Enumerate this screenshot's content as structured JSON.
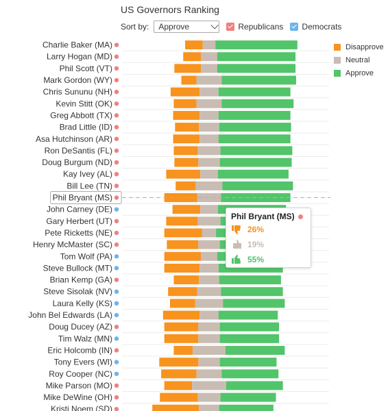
{
  "title": "US Governors Ranking",
  "sort": {
    "label": "Sort by:",
    "value": "Approve"
  },
  "filters": [
    {
      "label": "Republicans",
      "color": "#f08080"
    },
    {
      "label": "Democrats",
      "color": "#6cb4ea"
    }
  ],
  "colors": {
    "disapprove": "#f7931e",
    "neutral": "#c9bcb3",
    "approve": "#52c46a",
    "republican": "#f08080",
    "democrat": "#6cb4ea"
  },
  "legend": [
    {
      "label": "Disapprove",
      "color": "#f7931e"
    },
    {
      "label": "Neutral",
      "color": "#c9bcb3"
    },
    {
      "label": "Approve",
      "color": "#52c46a"
    }
  ],
  "chart_data": {
    "type": "bar",
    "stacked": true,
    "stack_offset": "diverging",
    "categories": [
      "Charlie Baker (MA)",
      "Larry Hogan (MD)",
      "Phil Scott (VT)",
      "Mark Gordon (WY)",
      "Chris Sununu (NH)",
      "Kevin Stitt (OK)",
      "Greg Abbott (TX)",
      "Brad Little (ID)",
      "Asa Hutchinson (AR)",
      "Ron DeSantis (FL)",
      "Doug Burgum (ND)",
      "Kay Ivey (AL)",
      "Bill Lee (TN)",
      "Phil Bryant (MS)",
      "John Carney (DE)",
      "Gary Herbert (UT)",
      "Pete Ricketts (NE)",
      "Henry McMaster (SC)",
      "Tom Wolf (PA)",
      "Steve Bullock (MT)",
      "Brian Kemp (GA)",
      "Steve Sisolak (NV)",
      "Laura Kelly (KS)",
      "John Bel Edwards (LA)",
      "Doug Ducey (AZ)",
      "Tim Walz (MN)",
      "Eric Holcomb (IN)",
      "Tony Evers (WI)",
      "Roy Cooper (NC)",
      "Mike Parson (MO)",
      "Mike DeWine (OH)",
      "Kristi Noem (SD)"
    ],
    "party": [
      "R",
      "R",
      "R",
      "R",
      "R",
      "R",
      "R",
      "R",
      "R",
      "R",
      "R",
      "R",
      "R",
      "R",
      "D",
      "R",
      "R",
      "R",
      "D",
      "D",
      "R",
      "D",
      "D",
      "D",
      "R",
      "D",
      "R",
      "D",
      "D",
      "R",
      "R",
      "R"
    ],
    "series": [
      {
        "name": "Disapprove",
        "values": [
          14,
          14,
          21,
          12,
          23,
          18,
          21,
          19,
          21,
          19,
          19,
          27,
          16,
          26,
          22,
          25,
          30,
          25,
          29,
          28,
          20,
          23,
          20,
          29,
          27,
          27,
          15,
          31,
          28,
          22,
          30,
          37
        ]
      },
      {
        "name": "Neutral",
        "values": [
          10,
          13,
          13,
          20,
          15,
          20,
          15,
          16,
          15,
          18,
          17,
          14,
          21,
          19,
          14,
          18,
          11,
          17,
          13,
          15,
          16,
          19,
          22,
          15,
          17,
          17,
          26,
          17,
          20,
          27,
          18,
          16
        ]
      },
      {
        "name": "Approve",
        "values": [
          65,
          62,
          62,
          59,
          57,
          57,
          57,
          57,
          57,
          57,
          57,
          56,
          56,
          55,
          54,
          54,
          54,
          54,
          54,
          51,
          49,
          49,
          49,
          47,
          47,
          47,
          47,
          45,
          45,
          45,
          44,
          43
        ]
      }
    ],
    "tooltip": {
      "name": "Phil Bryant (MS)",
      "disapprove": "26%",
      "neutral": "19%",
      "approve": "55%"
    },
    "highlighted": "Phil Bryant (MS)",
    "grid": true
  }
}
